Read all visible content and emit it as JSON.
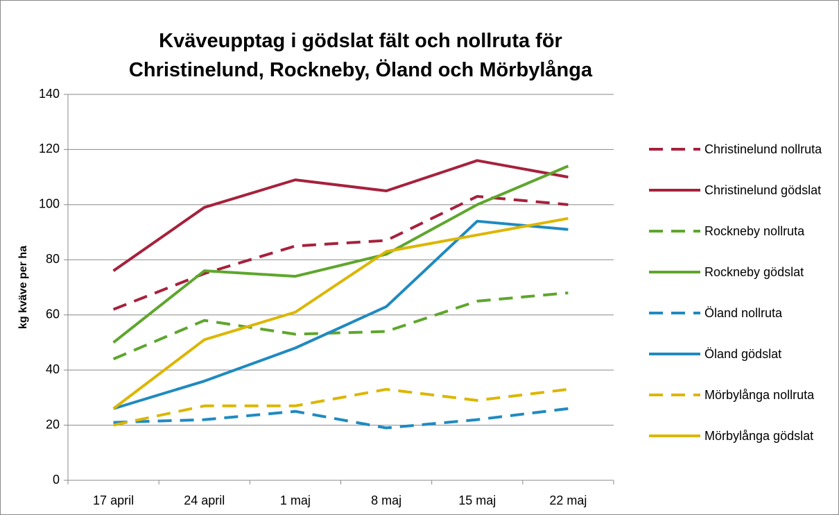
{
  "chart_data": {
    "type": "line",
    "title": "Kväveupptag i gödslat fält och nollruta för Christinelund, Rockneby, Öland och Mörbylånga",
    "ylabel": "kg kväve per ha",
    "categories": [
      "17 april",
      "24 april",
      "1 maj",
      "8 maj",
      "15 maj",
      "22 maj"
    ],
    "ylim": [
      0,
      140
    ],
    "yticks": [
      0,
      20,
      40,
      60,
      80,
      100,
      120,
      140
    ],
    "grid": true,
    "legend": "right",
    "series": [
      {
        "name": "Christinelund nollruta",
        "color": "#a6213c",
        "style": "dashed",
        "values": [
          62,
          75,
          85,
          87,
          103,
          100
        ]
      },
      {
        "name": "Christinelund gödslat",
        "color": "#a6213c",
        "style": "solid",
        "values": [
          76,
          99,
          109,
          105,
          116,
          110
        ]
      },
      {
        "name": "Rockneby nollruta",
        "color": "#5ea62c",
        "style": "dashed",
        "values": [
          44,
          58,
          53,
          54,
          65,
          68
        ]
      },
      {
        "name": "Rockneby gödslat",
        "color": "#5ea62c",
        "style": "solid",
        "values": [
          50,
          76,
          74,
          82,
          100,
          114
        ]
      },
      {
        "name": "Öland nollruta",
        "color": "#1f8ac0",
        "style": "dashed",
        "values": [
          21,
          22,
          25,
          19,
          22,
          26
        ]
      },
      {
        "name": "Öland gödslat",
        "color": "#1f8ac0",
        "style": "solid",
        "values": [
          26,
          36,
          48,
          63,
          94,
          91
        ]
      },
      {
        "name": "Mörbylånga nollruta",
        "color": "#dcb600",
        "style": "dashed",
        "values": [
          20,
          27,
          27,
          33,
          29,
          33
        ]
      },
      {
        "name": "Mörbylånga gödslat",
        "color": "#dcb600",
        "style": "solid",
        "values": [
          26,
          51,
          61,
          83,
          89,
          95
        ]
      }
    ]
  }
}
